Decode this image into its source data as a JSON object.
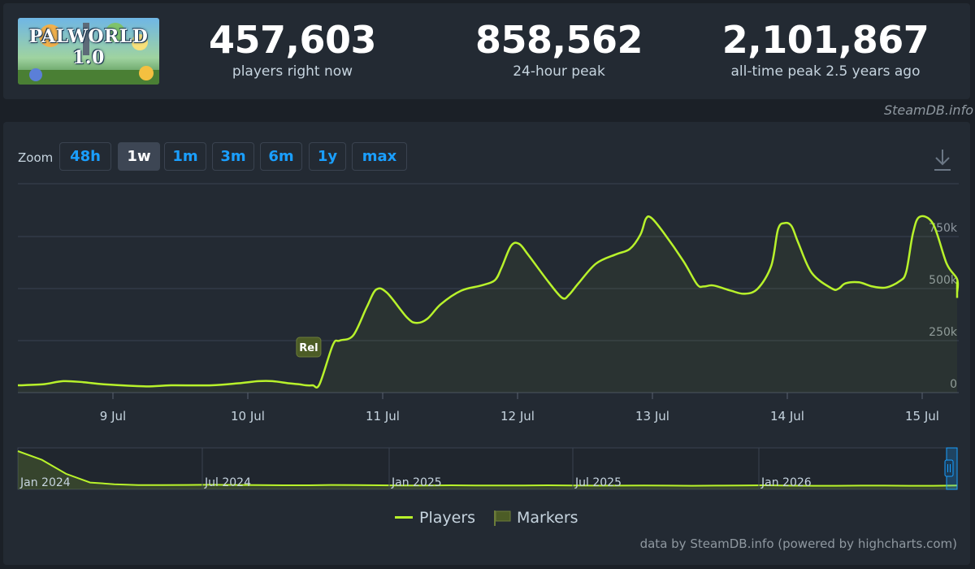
{
  "header": {
    "logo_text": "PALWORLD 1.0",
    "stats": [
      {
        "value": "457,603",
        "label": "players right now"
      },
      {
        "value": "858,562",
        "label": "24-hour peak"
      },
      {
        "value": "2,101,867",
        "label": "all-time peak 2.5 years ago"
      }
    ],
    "credit": "SteamDB.info"
  },
  "zoom": {
    "label": "Zoom",
    "buttons": [
      "48h",
      "1w",
      "1m",
      "3m",
      "6m",
      "1y",
      "max"
    ],
    "active": "1w"
  },
  "colors": {
    "series": "#b8f22b",
    "accent": "#1a9fff",
    "marker": "#4c5c26"
  },
  "chart_data": {
    "type": "line",
    "xlabel": "",
    "ylabel": "",
    "x_range": [
      "8 Jul 09:00",
      "15 Jul 07:00"
    ],
    "ylim": [
      0,
      1000000
    ],
    "y_ticks": [
      0,
      250000,
      500000,
      750000
    ],
    "y_tick_labels": [
      "0",
      "250k",
      "500k",
      "750k"
    ],
    "x_tick_labels": [
      "9 Jul",
      "10 Jul",
      "11 Jul",
      "12 Jul",
      "13 Jul",
      "14 Jul",
      "15 Jul"
    ],
    "grid": true,
    "series": [
      {
        "name": "Players",
        "x_days": [
          0,
          0.15,
          0.3,
          0.45,
          0.6,
          0.9,
          1.1,
          1.4,
          1.6,
          1.75,
          1.85,
          1.97,
          2.05,
          2.1,
          2.15,
          2.2,
          2.3,
          2.35,
          2.45,
          2.55,
          2.62,
          2.7,
          2.85,
          2.92,
          3.0,
          3.1,
          3.25,
          3.4,
          3.5,
          3.55,
          3.62,
          3.68,
          3.75,
          3.9,
          4.0,
          4.05,
          4.12,
          4.25,
          4.4,
          4.5,
          4.58,
          4.62,
          4.66,
          4.75,
          4.9,
          5.0,
          5.05,
          5.12,
          5.25,
          5.35,
          5.45,
          5.55,
          5.6,
          5.65,
          5.7,
          5.75,
          5.85,
          6.0,
          6.05,
          6.1,
          6.2,
          6.3,
          6.4,
          6.5,
          6.55,
          6.6,
          6.65,
          6.75,
          6.85,
          6.95,
          7.05,
          7.15,
          7.25,
          7.3,
          7.35
        ],
        "values": [
          35000,
          40000,
          55000,
          50000,
          40000,
          30000,
          35000,
          35000,
          45000,
          55000,
          55000,
          45000,
          40000,
          35000,
          35000,
          40000,
          230000,
          250000,
          275000,
          410000,
          495000,
          480000,
          360000,
          335000,
          355000,
          425000,
          490000,
          515000,
          540000,
          600000,
          705000,
          715000,
          660000,
          530000,
          455000,
          470000,
          525000,
          620000,
          665000,
          690000,
          760000,
          835000,
          840000,
          770000,
          630000,
          520000,
          510000,
          515000,
          490000,
          475000,
          500000,
          610000,
          785000,
          815000,
          800000,
          720000,
          575000,
          500000,
          500000,
          525000,
          530000,
          510000,
          505000,
          535000,
          580000,
          765000,
          845000,
          810000,
          620000,
          545000,
          480000,
          500000,
          530000,
          500000,
          455000
        ]
      }
    ],
    "markers": [
      {
        "label": "Rel",
        "x_day": 2.12
      }
    ],
    "navigator": {
      "labels": [
        "Jan 2024",
        "Jul 2024",
        "Jan 2025",
        "Jul 2025",
        "Jan 2026"
      ],
      "values": [
        2100000,
        1600000,
        800000,
        300000,
        200000,
        150000,
        150000,
        160000,
        170000,
        160000,
        150000,
        140000,
        140000,
        160000,
        150000,
        140000,
        130000,
        130000,
        140000,
        130000,
        130000,
        130000,
        140000,
        130000,
        120000,
        120000,
        130000,
        120000,
        110000,
        120000,
        130000,
        140000,
        120000,
        110000,
        110000,
        120000,
        120000,
        110000,
        110000,
        130000
      ]
    },
    "legend": [
      "Players",
      "Markers"
    ]
  },
  "footer": {
    "credit": "data by SteamDB.info (powered by highcharts.com)"
  }
}
